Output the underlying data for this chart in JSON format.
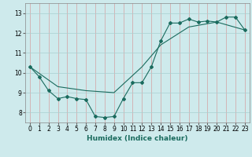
{
  "xlabel": "Humidex (Indice chaleur)",
  "ylabel": "",
  "background_color": "#ceeaec",
  "grid_color_v": "#d4a0a0",
  "grid_color_h": "#a8d0d0",
  "line_color": "#1a6b5e",
  "xlim": [
    -0.5,
    23.5
  ],
  "ylim": [
    7.5,
    13.5
  ],
  "yticks": [
    8,
    9,
    10,
    11,
    12,
    13
  ],
  "xticks": [
    0,
    1,
    2,
    3,
    4,
    5,
    6,
    7,
    8,
    9,
    10,
    11,
    12,
    13,
    14,
    15,
    16,
    17,
    18,
    19,
    20,
    21,
    22,
    23
  ],
  "line1_x": [
    0,
    1,
    2,
    3,
    4,
    5,
    6,
    7,
    8,
    9,
    10,
    11,
    12,
    13,
    14,
    15,
    16,
    17,
    18,
    19,
    20,
    21,
    22,
    23
  ],
  "line1_y": [
    10.3,
    9.8,
    9.1,
    8.7,
    8.8,
    8.7,
    8.65,
    7.8,
    7.75,
    7.8,
    8.7,
    9.5,
    9.5,
    10.3,
    11.6,
    12.5,
    12.5,
    12.7,
    12.55,
    12.6,
    12.55,
    12.8,
    12.8,
    12.15
  ],
  "line2_x": [
    0,
    3,
    6,
    9,
    12,
    14,
    17,
    20,
    23
  ],
  "line2_y": [
    10.3,
    9.3,
    9.1,
    9.0,
    10.3,
    11.4,
    12.3,
    12.55,
    12.15
  ]
}
